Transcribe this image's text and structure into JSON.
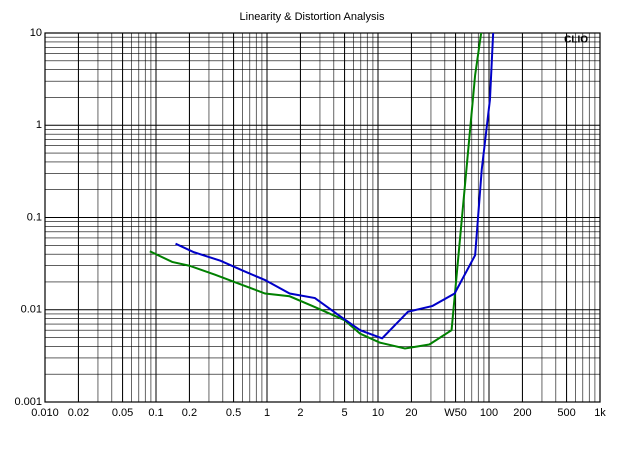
{
  "chart_data": {
    "type": "line",
    "title": "Linearity & Distortion Analysis",
    "annotation": "CLIO",
    "log_x": true,
    "log_y": true,
    "grid": true,
    "xlim": [
      0.01,
      1000
    ],
    "ylim": [
      0.001,
      10
    ],
    "xticks": [
      {
        "value": 0.01,
        "label": "0.010"
      },
      0.02,
      0.05,
      0.1,
      0.2,
      0.5,
      1,
      2,
      5,
      10,
      20,
      {
        "value": 50,
        "label": "W50"
      },
      100,
      200,
      500,
      {
        "value": 1000,
        "label": "1k"
      }
    ],
    "yticks": [
      0.001,
      0.01,
      0.1,
      1,
      10
    ],
    "series": [
      {
        "color": "#008000",
        "x": [
          0.088,
          0.14,
          0.2,
          0.34,
          0.57,
          0.96,
          1.6,
          2.7,
          5.0,
          6.9,
          10.4,
          17.5,
          29,
          46,
          75,
          85
        ],
        "values": [
          0.043,
          0.033,
          0.03,
          0.024,
          0.019,
          0.015,
          0.014,
          0.0107,
          0.0077,
          0.0055,
          0.0044,
          0.0038,
          0.0042,
          0.006,
          3.5,
          10
        ]
      },
      {
        "color": "#0000c8",
        "x": [
          0.15,
          0.22,
          0.38,
          0.63,
          0.96,
          1.6,
          2.7,
          4.5,
          6.9,
          10.9,
          18.6,
          31,
          49,
          75,
          86,
          102,
          109
        ],
        "values": [
          0.052,
          0.042,
          0.034,
          0.026,
          0.021,
          0.015,
          0.0134,
          0.0086,
          0.006,
          0.0049,
          0.0095,
          0.011,
          0.015,
          0.039,
          0.33,
          1.9,
          10
        ]
      }
    ]
  }
}
